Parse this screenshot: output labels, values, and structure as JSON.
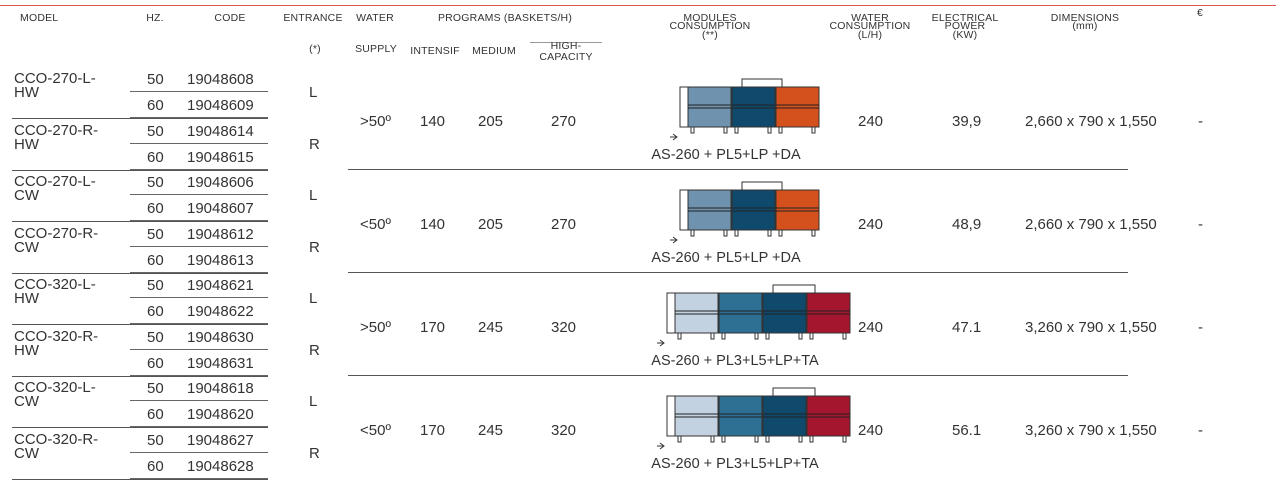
{
  "header": {
    "model": "MODEL",
    "hz": "HZ.",
    "code": "CODE",
    "entrance": "ENTRANCE",
    "entrance_note": "(*)",
    "water": "WATER",
    "water_supply": "SUPPLY",
    "programs": "PROGRAMS (BASKETS/H)",
    "intensif": "INTENSIF",
    "medium": "MEDIUM",
    "high_1": "HIGH-",
    "high_2": "CAPACITY",
    "modules_1": "MODULES",
    "modules_2": "CONSUMPTION",
    "modules_3": "(**)",
    "wc_1": "WATER",
    "wc_2": "CONSUMPTION",
    "wc_3": "(L/H)",
    "ep_1": "ELECTRICAL",
    "ep_2": "POWER",
    "ep_3": "(KW)",
    "dim_1": "DIMENSIONS",
    "dim_2": "(mm)",
    "price": "€"
  },
  "groups": [
    {
      "models": [
        {
          "l1": "CCO-270-L-",
          "l2": "HW",
          "entrance": "L",
          "rows": [
            {
              "hz": "50",
              "code": "19048608"
            },
            {
              "hz": "60",
              "code": "19048609"
            }
          ]
        },
        {
          "l1": "CCO-270-R-",
          "l2": "HW",
          "entrance": "R",
          "rows": [
            {
              "hz": "50",
              "code": "19048614"
            },
            {
              "hz": "60",
              "code": "19048615"
            }
          ]
        }
      ],
      "water_supply": "&gt;50º",
      "intensif": "140",
      "medium": "205",
      "high": "270",
      "modules_label": "AS-260 + PL5+LP +DA",
      "water_consumption": "240",
      "power": "39,9",
      "dimensions": "2,660 x 790 x 1,550",
      "price": "-",
      "module_colors": [
        "#6f93ae",
        "#0f4a6c",
        "#d4501c"
      ]
    },
    {
      "models": [
        {
          "l1": "CCO-270-L-",
          "l2": "CW",
          "entrance": "L",
          "rows": [
            {
              "hz": "50",
              "code": "19048606"
            },
            {
              "hz": "60",
              "code": "19048607"
            }
          ]
        },
        {
          "l1": "CCO-270-R-",
          "l2": "CW",
          "entrance": "R",
          "rows": [
            {
              "hz": "50",
              "code": "19048612"
            },
            {
              "hz": "60",
              "code": "19048613"
            }
          ]
        }
      ],
      "water_supply": "&lt;50º",
      "intensif": "140",
      "medium": "205",
      "high": "270",
      "modules_label": "AS-260 + PL5+LP +DA",
      "water_consumption": "240",
      "power": "48,9",
      "dimensions": "2,660 x 790 x 1,550",
      "price": "-",
      "module_colors": [
        "#6f93ae",
        "#0f4a6c",
        "#d4501c"
      ]
    },
    {
      "models": [
        {
          "l1": "CCO-320-L-",
          "l2": "HW",
          "entrance": "L",
          "rows": [
            {
              "hz": "50",
              "code": "19048621"
            },
            {
              "hz": "60",
              "code": "19048622"
            }
          ]
        },
        {
          "l1": "CCO-320-R-",
          "l2": "HW",
          "entrance": "R",
          "rows": [
            {
              "hz": "50",
              "code": "19048630"
            },
            {
              "hz": "60",
              "code": "19048631"
            }
          ]
        }
      ],
      "water_supply": "&gt;50º",
      "intensif": "170",
      "medium": "245",
      "high": "320",
      "modules_label": "AS-260 + PL3+L5+LP+TA",
      "water_consumption": "240",
      "power": "47.1",
      "dimensions": "3,260 x 790 x 1,550",
      "price": "-",
      "module_colors": [
        "#c3d2e0",
        "#2e6f94",
        "#0f4a6c",
        "#a3162e"
      ]
    },
    {
      "models": [
        {
          "l1": "CCO-320-L-",
          "l2": "CW",
          "entrance": "L",
          "rows": [
            {
              "hz": "50",
              "code": "19048618"
            },
            {
              "hz": "60",
              "code": "19048620"
            }
          ]
        },
        {
          "l1": "CCO-320-R-",
          "l2": "CW",
          "entrance": "R",
          "rows": [
            {
              "hz": "50",
              "code": "19048627"
            },
            {
              "hz": "60",
              "code": "19048628"
            }
          ]
        }
      ],
      "water_supply": "&lt;50º",
      "intensif": "170",
      "medium": "245",
      "high": "320",
      "modules_label": "AS-260 + PL3+L5+LP+TA",
      "water_consumption": "240",
      "power": "56.1",
      "dimensions": "3,260 x 790 x 1,550",
      "price": "-",
      "module_colors": [
        "#c3d2e0",
        "#2e6f94",
        "#0f4a6c",
        "#a3162e"
      ]
    }
  ]
}
